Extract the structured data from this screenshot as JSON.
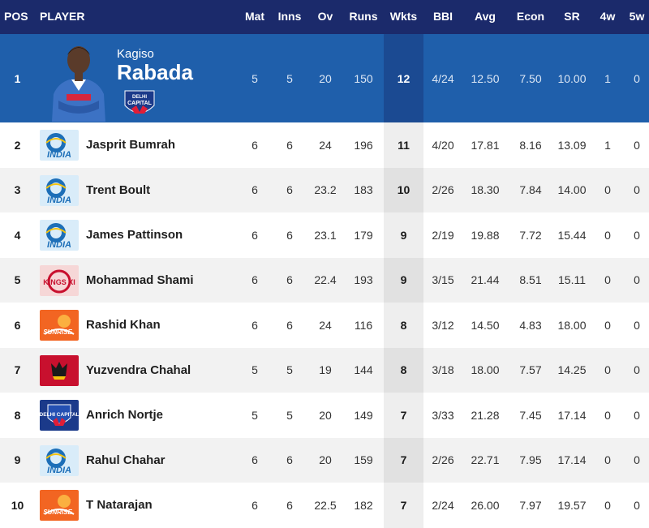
{
  "headers": [
    "POS",
    "PLAYER",
    "Mat",
    "Inns",
    "Ov",
    "Runs",
    "Wkts",
    "BBI",
    "Avg",
    "Econ",
    "SR",
    "4w",
    "5w"
  ],
  "leader": {
    "pos": "1",
    "first_name": "Kagiso",
    "last_name": "Rabada",
    "team_logo": "delhi-capitals-logo",
    "logo_text": [
      "DELHI",
      "CAPITAL"
    ],
    "mat": "5",
    "inns": "5",
    "ov": "20",
    "runs": "150",
    "wkts": "12",
    "bbi": "4/24",
    "avg": "12.50",
    "econ": "7.50",
    "sr": "10.00",
    "w4": "1",
    "w5": "0"
  },
  "rows": [
    {
      "pos": "2",
      "player": "Jasprit Bumrah",
      "team_logo": "mumbai-indians-logo",
      "logo_text": "INDIA",
      "mat": "6",
      "inns": "6",
      "ov": "24",
      "runs": "196",
      "wkts": "11",
      "bbi": "4/20",
      "avg": "17.81",
      "econ": "8.16",
      "sr": "13.09",
      "w4": "1",
      "w5": "0"
    },
    {
      "pos": "3",
      "player": "Trent Boult",
      "team_logo": "mumbai-indians-logo",
      "logo_text": "INDIA",
      "mat": "6",
      "inns": "6",
      "ov": "23.2",
      "runs": "183",
      "wkts": "10",
      "bbi": "2/26",
      "avg": "18.30",
      "econ": "7.84",
      "sr": "14.00",
      "w4": "0",
      "w5": "0"
    },
    {
      "pos": "4",
      "player": "James Pattinson",
      "team_logo": "mumbai-indians-logo",
      "logo_text": "INDIA",
      "mat": "6",
      "inns": "6",
      "ov": "23.1",
      "runs": "179",
      "wkts": "9",
      "bbi": "2/19",
      "avg": "19.88",
      "econ": "7.72",
      "sr": "15.44",
      "w4": "0",
      "w5": "0"
    },
    {
      "pos": "5",
      "player": "Mohammad Shami",
      "team_logo": "kings-xi-punjab-logo",
      "logo_text": "KINGS XI",
      "mat": "6",
      "inns": "6",
      "ov": "22.4",
      "runs": "193",
      "wkts": "9",
      "bbi": "3/15",
      "avg": "21.44",
      "econ": "8.51",
      "sr": "15.11",
      "w4": "0",
      "w5": "0"
    },
    {
      "pos": "6",
      "player": "Rashid Khan",
      "team_logo": "sunrisers-hyderabad-logo",
      "logo_text": "SUNRISE",
      "mat": "6",
      "inns": "6",
      "ov": "24",
      "runs": "116",
      "wkts": "8",
      "bbi": "3/12",
      "avg": "14.50",
      "econ": "4.83",
      "sr": "18.00",
      "w4": "0",
      "w5": "0"
    },
    {
      "pos": "7",
      "player": "Yuzvendra Chahal",
      "team_logo": "royal-challengers-bangalore-logo",
      "logo_text": "",
      "mat": "5",
      "inns": "5",
      "ov": "19",
      "runs": "144",
      "wkts": "8",
      "bbi": "3/18",
      "avg": "18.00",
      "econ": "7.57",
      "sr": "14.25",
      "w4": "0",
      "w5": "0"
    },
    {
      "pos": "8",
      "player": "Anrich Nortje",
      "team_logo": "delhi-capitals-logo",
      "logo_text": "DELHI CAPITAL",
      "mat": "5",
      "inns": "5",
      "ov": "20",
      "runs": "149",
      "wkts": "7",
      "bbi": "3/33",
      "avg": "21.28",
      "econ": "7.45",
      "sr": "17.14",
      "w4": "0",
      "w5": "0"
    },
    {
      "pos": "9",
      "player": "Rahul Chahar",
      "team_logo": "mumbai-indians-logo",
      "logo_text": "INDIA",
      "mat": "6",
      "inns": "6",
      "ov": "20",
      "runs": "159",
      "wkts": "7",
      "bbi": "2/26",
      "avg": "22.71",
      "econ": "7.95",
      "sr": "17.14",
      "w4": "0",
      "w5": "0"
    },
    {
      "pos": "10",
      "player": "T Natarajan",
      "team_logo": "sunrisers-hyderabad-logo",
      "logo_text": "SUNRISE",
      "mat": "6",
      "inns": "6",
      "ov": "22.5",
      "runs": "182",
      "wkts": "7",
      "bbi": "2/24",
      "avg": "26.00",
      "econ": "7.97",
      "sr": "19.57",
      "w4": "0",
      "w5": "0"
    }
  ],
  "colors": {
    "header_bg": "#1b2a6b",
    "leader_bg": "#1f5fab",
    "row_alt_bg": "#f2f2f2",
    "mumbai": "#1d6fb8",
    "punjab": "#c8102e",
    "sunrisers": "#f26522",
    "rcb": "#c8102e",
    "delhi": "#1b3a8a"
  }
}
